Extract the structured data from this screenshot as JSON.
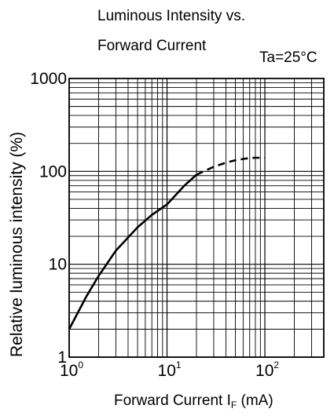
{
  "chart_data": {
    "type": "line",
    "title_line1": "Luminous Intensity vs.",
    "title_line2": "Forward Current",
    "condition": "Ta=25°C",
    "ylabel": "Relative luminous intensity (%)",
    "xlabel_main": "Forward Current  I",
    "xlabel_sub": "F",
    "xlabel_unit": " (mA)",
    "x_scale": "log",
    "y_scale": "log",
    "xlim": [
      1,
      400
    ],
    "ylim": [
      1,
      1000
    ],
    "grid": true,
    "y_ticks": [
      "1",
      "10",
      "100",
      "1000"
    ],
    "x_ticks": [
      {
        "base": "10",
        "exp": "0"
      },
      {
        "base": "10",
        "exp": "1"
      },
      {
        "base": "10",
        "exp": "2"
      }
    ],
    "series": [
      {
        "style": "solid",
        "x": [
          1,
          1.5,
          2,
          3,
          5,
          7,
          10,
          15,
          20
        ],
        "y": [
          2,
          4.5,
          7.5,
          14,
          25,
          34,
          44,
          70,
          92
        ]
      },
      {
        "style": "dashed",
        "x": [
          20,
          30,
          40,
          50,
          60,
          70,
          80,
          90,
          100
        ],
        "y": [
          92,
          112,
          124,
          132,
          136,
          139,
          140,
          140,
          140
        ]
      }
    ]
  }
}
